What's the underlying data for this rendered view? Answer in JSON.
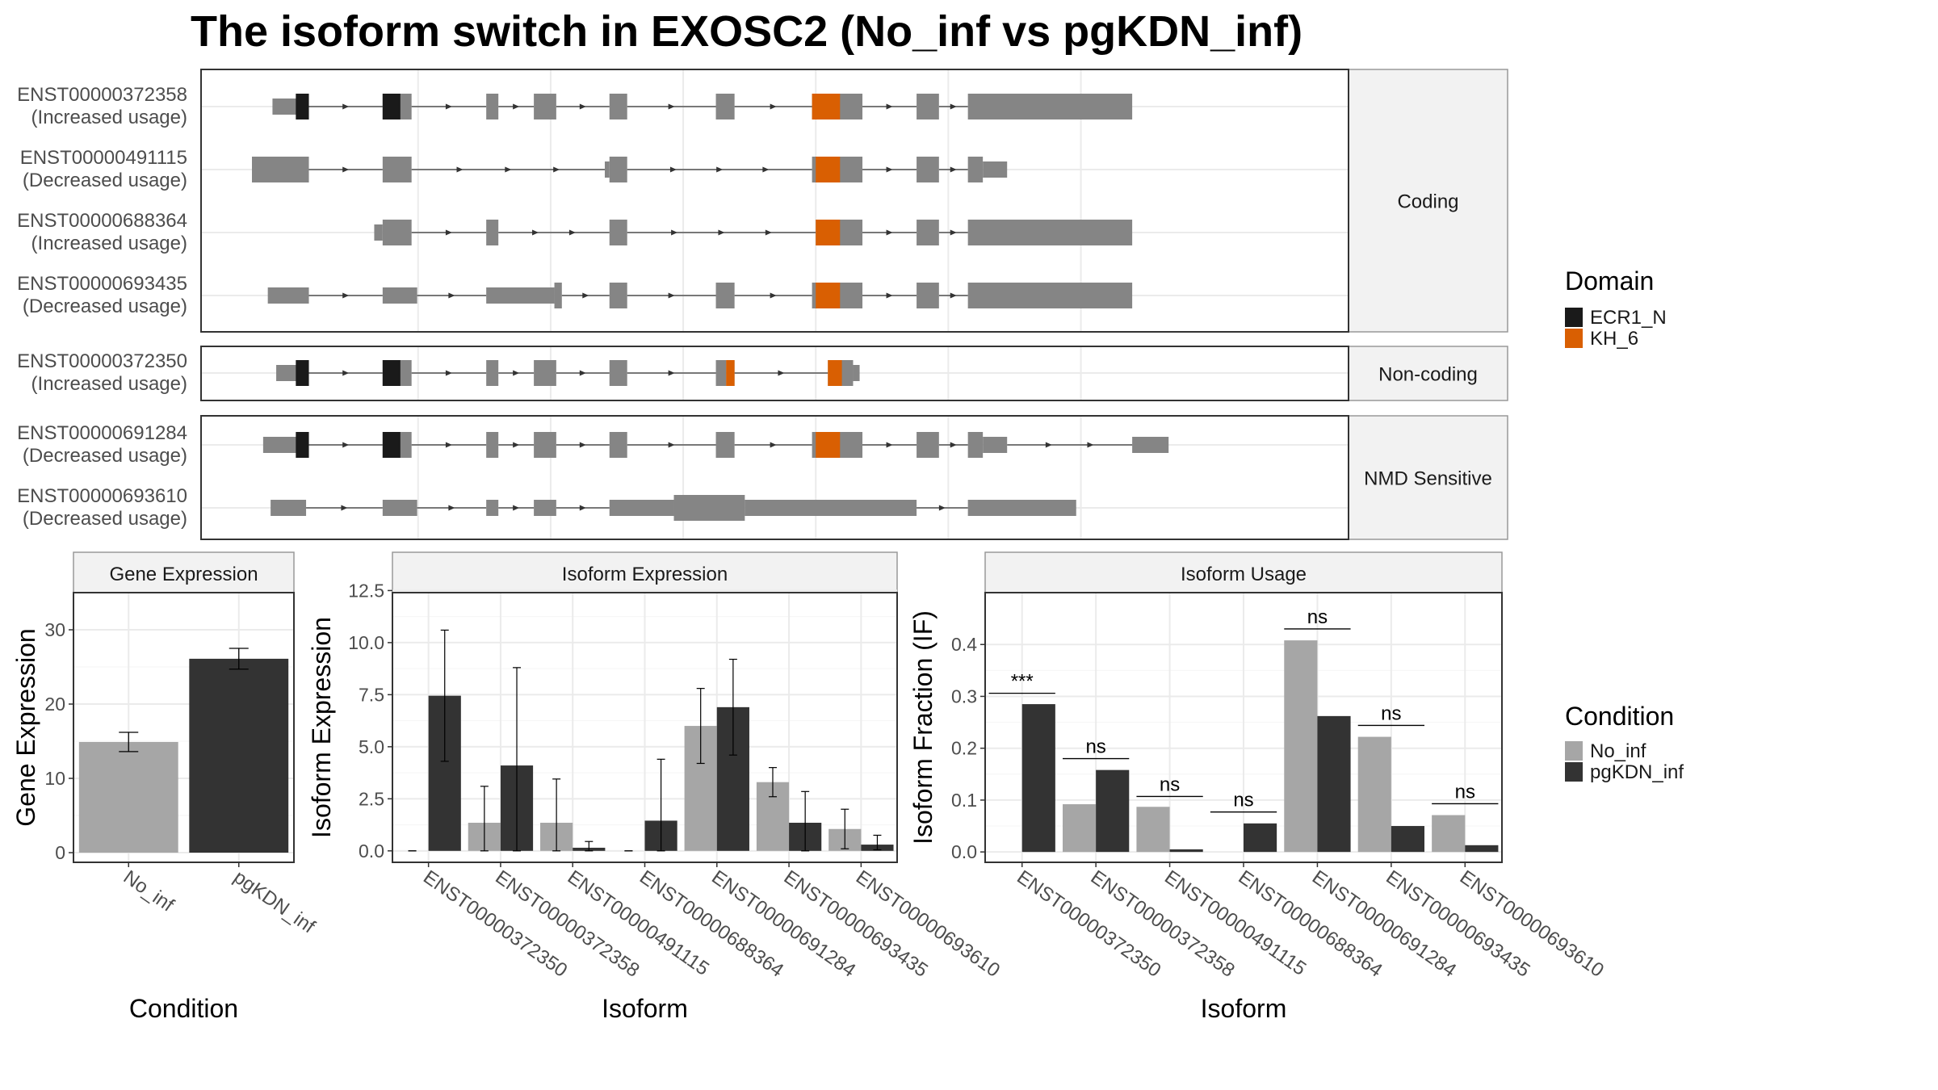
{
  "title": "The isoform switch in EXOSC2 (No_inf vs pgKDN_inf)",
  "colors": {
    "exon": "#858585",
    "ECR1_N": "#1a1a1a",
    "KH_6": "#d95f02",
    "No_inf": "#a6a6a6",
    "pgKDN_inf": "#333333",
    "strip": "#f2f2f2",
    "grid": "#ebebeb"
  },
  "domain_legend": {
    "title": "Domain",
    "items": [
      {
        "label": "ECR1_N",
        "color": "#1a1a1a"
      },
      {
        "label": "KH_6",
        "color": "#d95f02"
      }
    ]
  },
  "condition_legend": {
    "title": "Condition",
    "items": [
      {
        "label": "No_inf",
        "color": "#a6a6a6"
      },
      {
        "label": "pgKDN_inf",
        "color": "#333333"
      }
    ]
  },
  "chart_data": [
    {
      "type": "gene-structure",
      "genomic_range": [
        0,
        1000
      ],
      "panels": [
        {
          "label": "Coding",
          "isoforms": [
            {
              "id": "ENST00000372358",
              "usage": "(Increased usage)",
              "exons": [
                [
                  22,
                  48,
                  "t"
                ],
                [
                  48,
                  61,
                  "c"
                ],
                [
                  140,
                  171,
                  "c"
                ],
                [
                  251,
                  264,
                  "c"
                ],
                [
                  302,
                  326,
                  "c"
                ],
                [
                  383,
                  402,
                  "c"
                ],
                [
                  497,
                  517,
                  "c"
                ],
                [
                  600,
                  654,
                  "c"
                ],
                [
                  712,
                  736,
                  "c"
                ],
                [
                  767,
                  943,
                  "c"
                ]
              ],
              "domains": [
                [
                  47,
                  61,
                  "ECR1_N"
                ],
                [
                  140,
                  159,
                  "ECR1_N"
                ],
                [
                  600,
                  630,
                  "KH_6"
                ]
              ]
            },
            {
              "id": "ENST00000491115",
              "usage": "(Decreased usage)",
              "exons": [
                [
                  0,
                  61,
                  "c"
                ],
                [
                  140,
                  171,
                  "c"
                ],
                [
                  378,
                  383,
                  "t"
                ],
                [
                  383,
                  402,
                  "c"
                ],
                [
                  600,
                  654,
                  "c"
                ],
                [
                  712,
                  736,
                  "c"
                ],
                [
                  767,
                  783,
                  "c"
                ],
                [
                  783,
                  809,
                  "t"
                ]
              ],
              "domains": [
                [
                  604,
                  630,
                  "KH_6"
                ]
              ]
            },
            {
              "id": "ENST00000688364",
              "usage": "(Increased usage)",
              "exons": [
                [
                  131,
                  140,
                  "t"
                ],
                [
                  140,
                  171,
                  "c"
                ],
                [
                  251,
                  264,
                  "c"
                ],
                [
                  383,
                  402,
                  "c"
                ],
                [
                  604,
                  654,
                  "c"
                ],
                [
                  712,
                  736,
                  "c"
                ],
                [
                  767,
                  943,
                  "c"
                ]
              ],
              "domains": [
                [
                  604,
                  630,
                  "KH_6"
                ]
              ]
            },
            {
              "id": "ENST00000693435",
              "usage": "(Decreased usage)",
              "exons": [
                [
                  17,
                  61,
                  "t"
                ],
                [
                  140,
                  177,
                  "t"
                ],
                [
                  251,
                  324,
                  "t"
                ],
                [
                  324,
                  332,
                  "c"
                ],
                [
                  383,
                  402,
                  "c"
                ],
                [
                  497,
                  517,
                  "c"
                ],
                [
                  600,
                  654,
                  "c"
                ],
                [
                  712,
                  736,
                  "c"
                ],
                [
                  767,
                  943,
                  "c"
                ]
              ],
              "domains": [
                [
                  604,
                  630,
                  "KH_6"
                ]
              ]
            }
          ]
        },
        {
          "label": "Non-coding",
          "isoforms": [
            {
              "id": "ENST00000372350",
              "usage": "(Increased usage)",
              "exons": [
                [
                  26,
                  48,
                  "t"
                ],
                [
                  48,
                  61,
                  "c"
                ],
                [
                  140,
                  171,
                  "c"
                ],
                [
                  251,
                  264,
                  "c"
                ],
                [
                  302,
                  326,
                  "c"
                ],
                [
                  383,
                  402,
                  "c"
                ],
                [
                  497,
                  508,
                  "c"
                ],
                [
                  508,
                  517,
                  "c"
                ],
                [
                  617,
                  644,
                  "c"
                ],
                [
                  644,
                  651,
                  "t"
                ]
              ],
              "domains": [
                [
                  47,
                  61,
                  "ECR1_N"
                ],
                [
                  140,
                  159,
                  "ECR1_N"
                ],
                [
                  508,
                  517,
                  "KH_6"
                ],
                [
                  617,
                  632,
                  "KH_6"
                ]
              ]
            }
          ]
        },
        {
          "label": "NMD Sensitive",
          "isoforms": [
            {
              "id": "ENST00000691284",
              "usage": "(Decreased usage)",
              "exons": [
                [
                  12,
                  48,
                  "t"
                ],
                [
                  48,
                  61,
                  "c"
                ],
                [
                  140,
                  171,
                  "c"
                ],
                [
                  251,
                  264,
                  "c"
                ],
                [
                  302,
                  326,
                  "c"
                ],
                [
                  383,
                  402,
                  "c"
                ],
                [
                  497,
                  517,
                  "c"
                ],
                [
                  600,
                  654,
                  "c"
                ],
                [
                  712,
                  736,
                  "c"
                ],
                [
                  767,
                  783,
                  "c"
                ],
                [
                  783,
                  809,
                  "t"
                ],
                [
                  943,
                  982,
                  "t"
                ]
              ],
              "domains": [
                [
                  47,
                  61,
                  "ECR1_N"
                ],
                [
                  140,
                  159,
                  "ECR1_N"
                ],
                [
                  604,
                  630,
                  "KH_6"
                ]
              ]
            },
            {
              "id": "ENST00000693610",
              "usage": "(Decreased usage)",
              "exons": [
                [
                  20,
                  58,
                  "t"
                ],
                [
                  140,
                  177,
                  "t"
                ],
                [
                  251,
                  264,
                  "t"
                ],
                [
                  302,
                  326,
                  "t"
                ],
                [
                  383,
                  452,
                  "t"
                ],
                [
                  452,
                  528,
                  "c"
                ],
                [
                  528,
                  712,
                  "t"
                ],
                [
                  767,
                  883,
                  "t"
                ]
              ],
              "domains": []
            }
          ]
        }
      ]
    },
    {
      "type": "bar",
      "title": "Gene Expression",
      "xlabel": "Condition",
      "ylabel": "Gene Expression",
      "categories": [
        "No_inf",
        "pgKDN_inf"
      ],
      "values": [
        14.9,
        26.1
      ],
      "errors": [
        [
          13.6,
          16.2
        ],
        [
          24.7,
          27.5
        ]
      ],
      "ylim": [
        -1.3,
        35
      ],
      "yticks": [
        0,
        10,
        20,
        30
      ]
    },
    {
      "type": "bar",
      "title": "Isoform Expression",
      "xlabel": "Isoform",
      "ylabel": "Isoform Expression",
      "categories": [
        "ENST00000372350",
        "ENST00000372358",
        "ENST00000491115",
        "ENST00000688364",
        "ENST00000691284",
        "ENST00000693435",
        "ENST00000693610"
      ],
      "series": [
        {
          "name": "No_inf",
          "values": [
            0.0,
            1.35,
            1.35,
            0.0,
            6.0,
            3.3,
            1.05
          ],
          "errors": [
            [
              0.0,
              0.0
            ],
            [
              0.0,
              3.1
            ],
            [
              0.0,
              3.45
            ],
            [
              0.0,
              0.0
            ],
            [
              4.2,
              7.8
            ],
            [
              2.6,
              4.0
            ],
            [
              0.1,
              2.0
            ]
          ]
        },
        {
          "name": "pgKDN_inf",
          "values": [
            7.45,
            4.1,
            0.15,
            1.45,
            6.9,
            1.35,
            0.3
          ],
          "errors": [
            [
              4.3,
              10.6
            ],
            [
              0.0,
              8.8
            ],
            [
              0.0,
              0.45
            ],
            [
              0.0,
              4.4
            ],
            [
              4.6,
              9.2
            ],
            [
              0.0,
              2.85
            ],
            [
              0.05,
              0.75
            ]
          ]
        }
      ],
      "ylim": [
        -0.55,
        12.4
      ],
      "yticks": [
        0.0,
        2.5,
        5.0,
        7.5,
        10.0,
        12.5
      ],
      "yticklabels": [
        "0.0",
        "2.5",
        "5.0",
        "7.5",
        "10.0",
        "12.5"
      ]
    },
    {
      "type": "bar",
      "title": "Isoform Usage",
      "xlabel": "Isoform",
      "ylabel": "Isoform Fraction (IF)",
      "categories": [
        "ENST00000372350",
        "ENST00000372358",
        "ENST00000491115",
        "ENST00000688364",
        "ENST00000691284",
        "ENST00000693435",
        "ENST00000693610"
      ],
      "series": [
        {
          "name": "No_inf",
          "values": [
            0.0,
            0.092,
            0.087,
            0.0,
            0.408,
            0.222,
            0.071
          ]
        },
        {
          "name": "pgKDN_inf",
          "values": [
            0.285,
            0.158,
            0.005,
            0.055,
            0.262,
            0.05,
            0.013
          ]
        }
      ],
      "significance": [
        "***",
        "ns",
        "ns",
        "ns",
        "ns",
        "ns",
        "ns"
      ],
      "sig_y": [
        0.306,
        0.18,
        0.107,
        0.077,
        0.43,
        0.244,
        0.093
      ],
      "ylim": [
        -0.02,
        0.5
      ],
      "yticks": [
        0.0,
        0.1,
        0.2,
        0.3,
        0.4
      ],
      "yticklabels": [
        "0.0",
        "0.1",
        "0.2",
        "0.3",
        "0.4"
      ]
    }
  ]
}
